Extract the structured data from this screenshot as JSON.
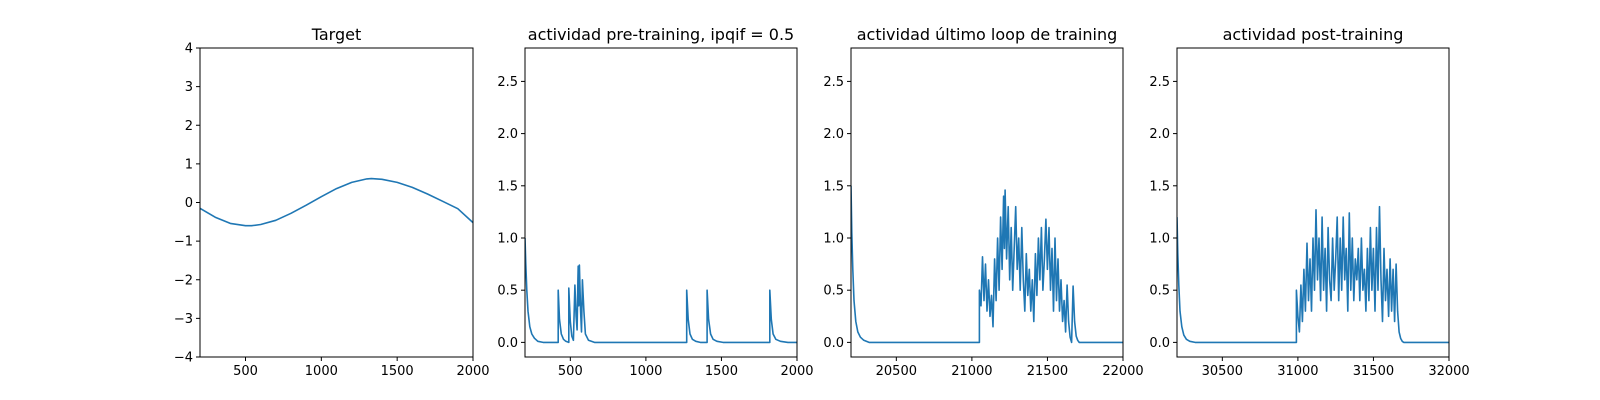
{
  "figure": {
    "line_color": "#1f77b4"
  },
  "chart_data": [
    {
      "type": "line",
      "title": "Target",
      "xlim": [
        200,
        2000
      ],
      "ylim": [
        -4,
        4
      ],
      "xticks": [
        500,
        1000,
        1500,
        2000
      ],
      "yticks": [
        -4,
        -3,
        -2,
        -1,
        0,
        1,
        2,
        3,
        4
      ],
      "x": [
        200,
        300,
        400,
        500,
        540,
        600,
        700,
        800,
        900,
        1000,
        1100,
        1200,
        1300,
        1330,
        1400,
        1500,
        1600,
        1700,
        1800,
        1900,
        2000
      ],
      "y": [
        -0.15,
        -0.38,
        -0.54,
        -0.6,
        -0.6,
        -0.57,
        -0.46,
        -0.28,
        -0.07,
        0.15,
        0.36,
        0.52,
        0.61,
        0.62,
        0.6,
        0.52,
        0.39,
        0.22,
        0.03,
        -0.16,
        -0.52
      ]
    },
    {
      "type": "line",
      "title": "actividad pre-training, ipqif = 0.5",
      "xlim": [
        200,
        2000
      ],
      "ylim": [
        -0.14,
        2.82
      ],
      "xticks": [
        500,
        1000,
        1500,
        2000
      ],
      "yticks": [
        0.0,
        0.5,
        1.0,
        1.5,
        2.0,
        2.5
      ],
      "x": [
        200,
        205,
        212,
        220,
        232,
        245,
        262,
        285,
        320,
        380,
        420,
        420,
        428,
        440,
        455,
        470,
        490,
        490,
        500,
        510,
        520,
        530,
        538,
        545,
        550,
        552,
        556,
        560,
        568,
        574,
        580,
        590,
        600,
        620,
        660,
        750,
        900,
        1100,
        1270,
        1270,
        1280,
        1292,
        1308,
        1330,
        1360,
        1405,
        1405,
        1415,
        1428,
        1445,
        1470,
        1510,
        1560,
        1650,
        1750,
        1820,
        1820,
        1830,
        1842,
        1860,
        1890,
        1940,
        2000
      ],
      "y": [
        1.0,
        0.75,
        0.5,
        0.3,
        0.15,
        0.08,
        0.04,
        0.01,
        0.0,
        0.0,
        0.0,
        0.5,
        0.22,
        0.08,
        0.03,
        0.01,
        0.0,
        0.52,
        0.2,
        0.06,
        0.02,
        0.55,
        0.25,
        0.12,
        0.6,
        0.73,
        0.35,
        0.74,
        0.3,
        0.1,
        0.6,
        0.3,
        0.08,
        0.02,
        0.0,
        0.0,
        0.0,
        0.0,
        0.0,
        0.5,
        0.22,
        0.08,
        0.03,
        0.01,
        0.0,
        0.0,
        0.5,
        0.22,
        0.08,
        0.03,
        0.01,
        0.0,
        0.0,
        0.0,
        0.0,
        0.0,
        0.5,
        0.22,
        0.08,
        0.03,
        0.01,
        0.0,
        0.0
      ]
    },
    {
      "type": "line",
      "title": "actividad último loop de training",
      "xlim": [
        20200,
        22000
      ],
      "ylim": [
        -0.14,
        2.82
      ],
      "xticks": [
        20500,
        21000,
        21500,
        22000
      ],
      "yticks": [
        0.0,
        0.5,
        1.0,
        1.5,
        2.0,
        2.5
      ],
      "x": [
        20200,
        20205,
        20212,
        20220,
        20232,
        20245,
        20262,
        20285,
        20320,
        20400,
        20600,
        20800,
        21050,
        21050,
        21060,
        21070,
        21080,
        21090,
        21100,
        21110,
        21120,
        21130,
        21140,
        21150,
        21160,
        21170,
        21180,
        21190,
        21200,
        21210,
        21215,
        21220,
        21230,
        21240,
        21250,
        21260,
        21270,
        21280,
        21290,
        21300,
        21310,
        21320,
        21330,
        21340,
        21350,
        21360,
        21370,
        21380,
        21390,
        21400,
        21410,
        21420,
        21430,
        21440,
        21450,
        21460,
        21470,
        21480,
        21490,
        21500,
        21510,
        21520,
        21530,
        21540,
        21550,
        21560,
        21570,
        21580,
        21590,
        21600,
        21610,
        21620,
        21630,
        21640,
        21650,
        21660,
        21670,
        21680,
        21690,
        21700,
        21710,
        21720,
        21740,
        21770,
        21800,
        21850,
        21900,
        21950,
        22000
      ],
      "y": [
        1.5,
        1.05,
        0.7,
        0.4,
        0.2,
        0.1,
        0.05,
        0.02,
        0.0,
        0.0,
        0.0,
        0.0,
        0.0,
        0.5,
        0.35,
        0.82,
        0.4,
        0.75,
        0.3,
        0.6,
        0.25,
        0.45,
        0.15,
        0.8,
        0.4,
        1.0,
        0.5,
        1.2,
        0.7,
        1.4,
        0.9,
        1.46,
        0.8,
        1.3,
        0.6,
        1.1,
        0.5,
        0.9,
        1.3,
        0.7,
        1.0,
        0.5,
        1.1,
        0.6,
        0.3,
        0.85,
        0.45,
        0.7,
        0.3,
        0.6,
        0.2,
        0.85,
        0.45,
        1.0,
        0.6,
        1.1,
        0.5,
        0.8,
        1.18,
        0.7,
        1.1,
        0.5,
        0.9,
        0.3,
        1.0,
        0.4,
        0.8,
        0.3,
        0.6,
        0.2,
        0.4,
        0.1,
        0.55,
        0.2,
        0.05,
        0.0,
        0.54,
        0.2,
        0.06,
        0.02,
        0.0,
        0.0,
        0.0,
        0.0,
        0.0,
        0.0,
        0.0,
        0.0,
        0.0
      ]
    },
    {
      "type": "line",
      "title": "actividad post-training",
      "xlim": [
        30200,
        32000
      ],
      "ylim": [
        -0.14,
        2.82
      ],
      "xticks": [
        30500,
        31000,
        31500,
        32000
      ],
      "yticks": [
        0.0,
        0.5,
        1.0,
        1.5,
        2.0,
        2.5
      ],
      "x": [
        30200,
        30205,
        30212,
        30220,
        30232,
        30245,
        30262,
        30285,
        30320,
        30400,
        30600,
        30800,
        30990,
        30990,
        31000,
        31010,
        31020,
        31030,
        31040,
        31050,
        31060,
        31070,
        31080,
        31090,
        31100,
        31110,
        31120,
        31130,
        31140,
        31150,
        31160,
        31170,
        31180,
        31190,
        31200,
        31210,
        31220,
        31230,
        31240,
        31250,
        31260,
        31270,
        31280,
        31290,
        31300,
        31310,
        31320,
        31330,
        31340,
        31350,
        31360,
        31370,
        31380,
        31390,
        31400,
        31410,
        31420,
        31430,
        31440,
        31450,
        31460,
        31470,
        31480,
        31490,
        31500,
        31510,
        31520,
        31530,
        31540,
        31550,
        31560,
        31570,
        31580,
        31590,
        31600,
        31610,
        31620,
        31630,
        31640,
        31650,
        31660,
        31670,
        31680,
        31690,
        31700,
        31720,
        31750,
        31800,
        31900,
        32000
      ],
      "y": [
        1.2,
        0.85,
        0.55,
        0.3,
        0.15,
        0.07,
        0.03,
        0.01,
        0.0,
        0.0,
        0.0,
        0.0,
        0.0,
        0.5,
        0.25,
        0.1,
        0.55,
        0.2,
        0.7,
        0.3,
        0.95,
        0.4,
        0.8,
        0.3,
        1.0,
        0.5,
        1.27,
        0.6,
        1.0,
        0.4,
        1.2,
        0.5,
        0.9,
        0.3,
        1.1,
        0.6,
        0.4,
        1.0,
        0.5,
        0.8,
        1.2,
        0.4,
        1.0,
        0.5,
        1.2,
        0.6,
        0.9,
        0.3,
        1.24,
        0.5,
        1.0,
        0.4,
        0.8,
        0.6,
        0.9,
        0.4,
        1.0,
        0.5,
        0.7,
        0.3,
        0.9,
        0.4,
        1.1,
        0.5,
        0.9,
        0.3,
        1.1,
        0.5,
        1.3,
        0.6,
        0.2,
        0.9,
        0.4,
        0.7,
        0.25,
        0.8,
        0.3,
        0.7,
        0.2,
        0.75,
        0.3,
        0.1,
        0.04,
        0.01,
        0.0,
        0.0,
        0.0,
        0.0,
        0.0,
        0.0
      ]
    }
  ]
}
